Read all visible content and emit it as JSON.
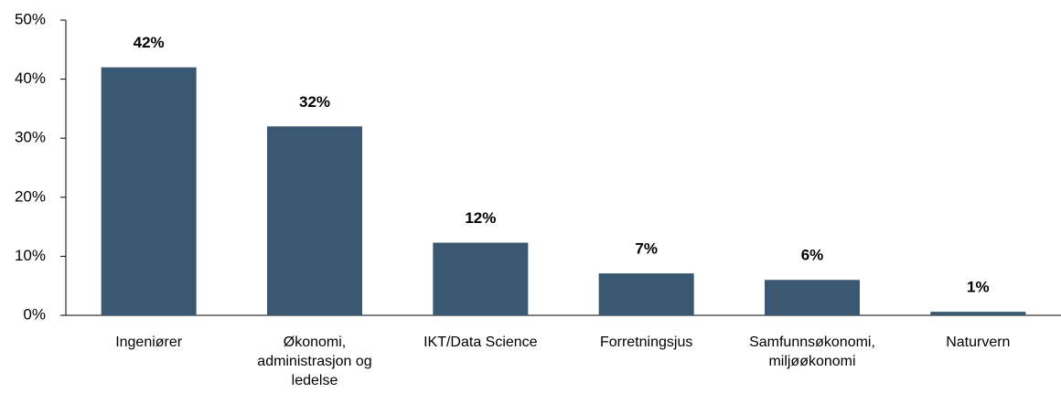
{
  "chart_data": {
    "type": "bar",
    "categories": [
      "Ingeniører",
      "Økonomi, administrasjon og ledelse",
      "IKT/Data Science",
      "Forretningsjus",
      "Samfunnsøkonomi, miljøøkonomi",
      "Naturvern"
    ],
    "values": [
      42,
      32,
      12.3,
      7.1,
      6,
      0.6
    ],
    "value_labels": [
      "42%",
      "32%",
      "12%",
      "7%",
      "6%",
      "1%"
    ],
    "color": "#3b5873",
    "ylim": [
      0,
      50
    ],
    "yticks": [
      {
        "value": 0,
        "label": "0%"
      },
      {
        "value": 10,
        "label": "10%"
      },
      {
        "value": 20,
        "label": "20%"
      },
      {
        "value": 30,
        "label": "30%"
      },
      {
        "value": 40,
        "label": "40%"
      },
      {
        "value": 50,
        "label": "50%"
      }
    ],
    "grid": false
  }
}
